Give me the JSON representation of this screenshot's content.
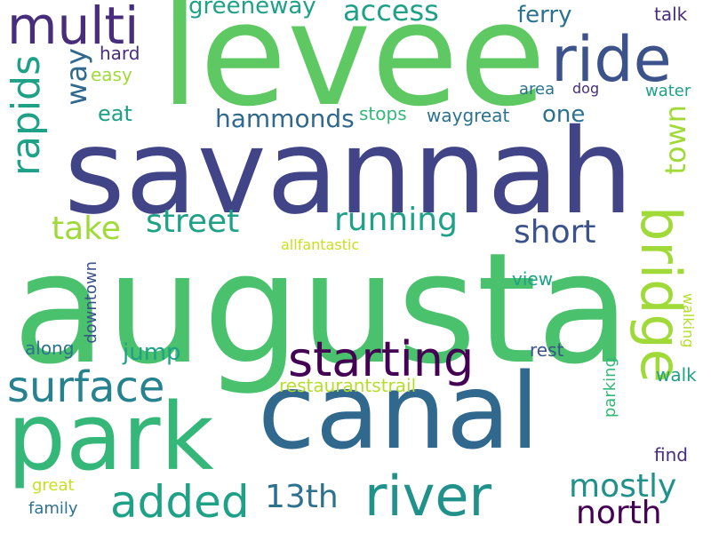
{
  "words": {
    "augusta": "augusta",
    "levee": "levee",
    "savannah": "savannah",
    "canal": "canal",
    "park": "park",
    "ride": "ride",
    "multi": "multi",
    "starting": "starting",
    "river": "river",
    "surface": "surface",
    "added": "added",
    "bridge": "bridge",
    "rapids": "rapids",
    "running": "running",
    "street": "street",
    "take": "take",
    "short": "short",
    "mostly": "mostly",
    "north": "north",
    "13th": "13th",
    "access": "access",
    "hammonds": "hammonds",
    "town": "town",
    "way": "way",
    "jump": "jump",
    "eat": "eat",
    "one": "one",
    "ferry": "ferry",
    "greeneway": "greeneway",
    "restaurantstrail": "restaurantstrail",
    "talk": "talk",
    "hard": "hard",
    "easy": "easy",
    "stops": "stops",
    "waygreat": "waygreat",
    "area": "area",
    "dog": "dog",
    "water": "water",
    "view": "view",
    "rest": "rest",
    "walk": "walk",
    "find": "find",
    "along": "along",
    "downtown": "downtown",
    "allfantastic": "allfantastic",
    "parking": "parking",
    "walking": "walking",
    "great": "great",
    "family": "family"
  },
  "colors": {
    "background": "#ffffff",
    "lime": "#a0da39",
    "green": "#4ac16d",
    "teal": "#1fa187",
    "blue": "#31688e",
    "indigo": "#414487",
    "purple": "#440154"
  }
}
